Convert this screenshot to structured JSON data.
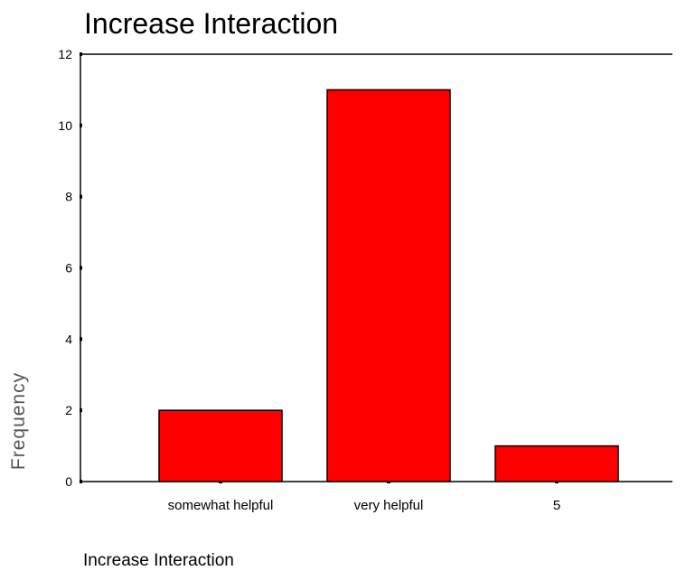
{
  "chart_data": {
    "type": "bar",
    "title": "Increase Interaction",
    "xlabel": "Increase Interaction",
    "ylabel": "Frequency",
    "categories": [
      "somewhat helpful",
      "very helpful",
      "5"
    ],
    "values": [
      2,
      11,
      1
    ],
    "ylim": [
      0,
      12
    ],
    "yticks": [
      0,
      2,
      4,
      6,
      8,
      10,
      12
    ],
    "grid": false,
    "legend": "none",
    "bar_color": "#ff0000",
    "bar_edge_color": "#000000"
  }
}
